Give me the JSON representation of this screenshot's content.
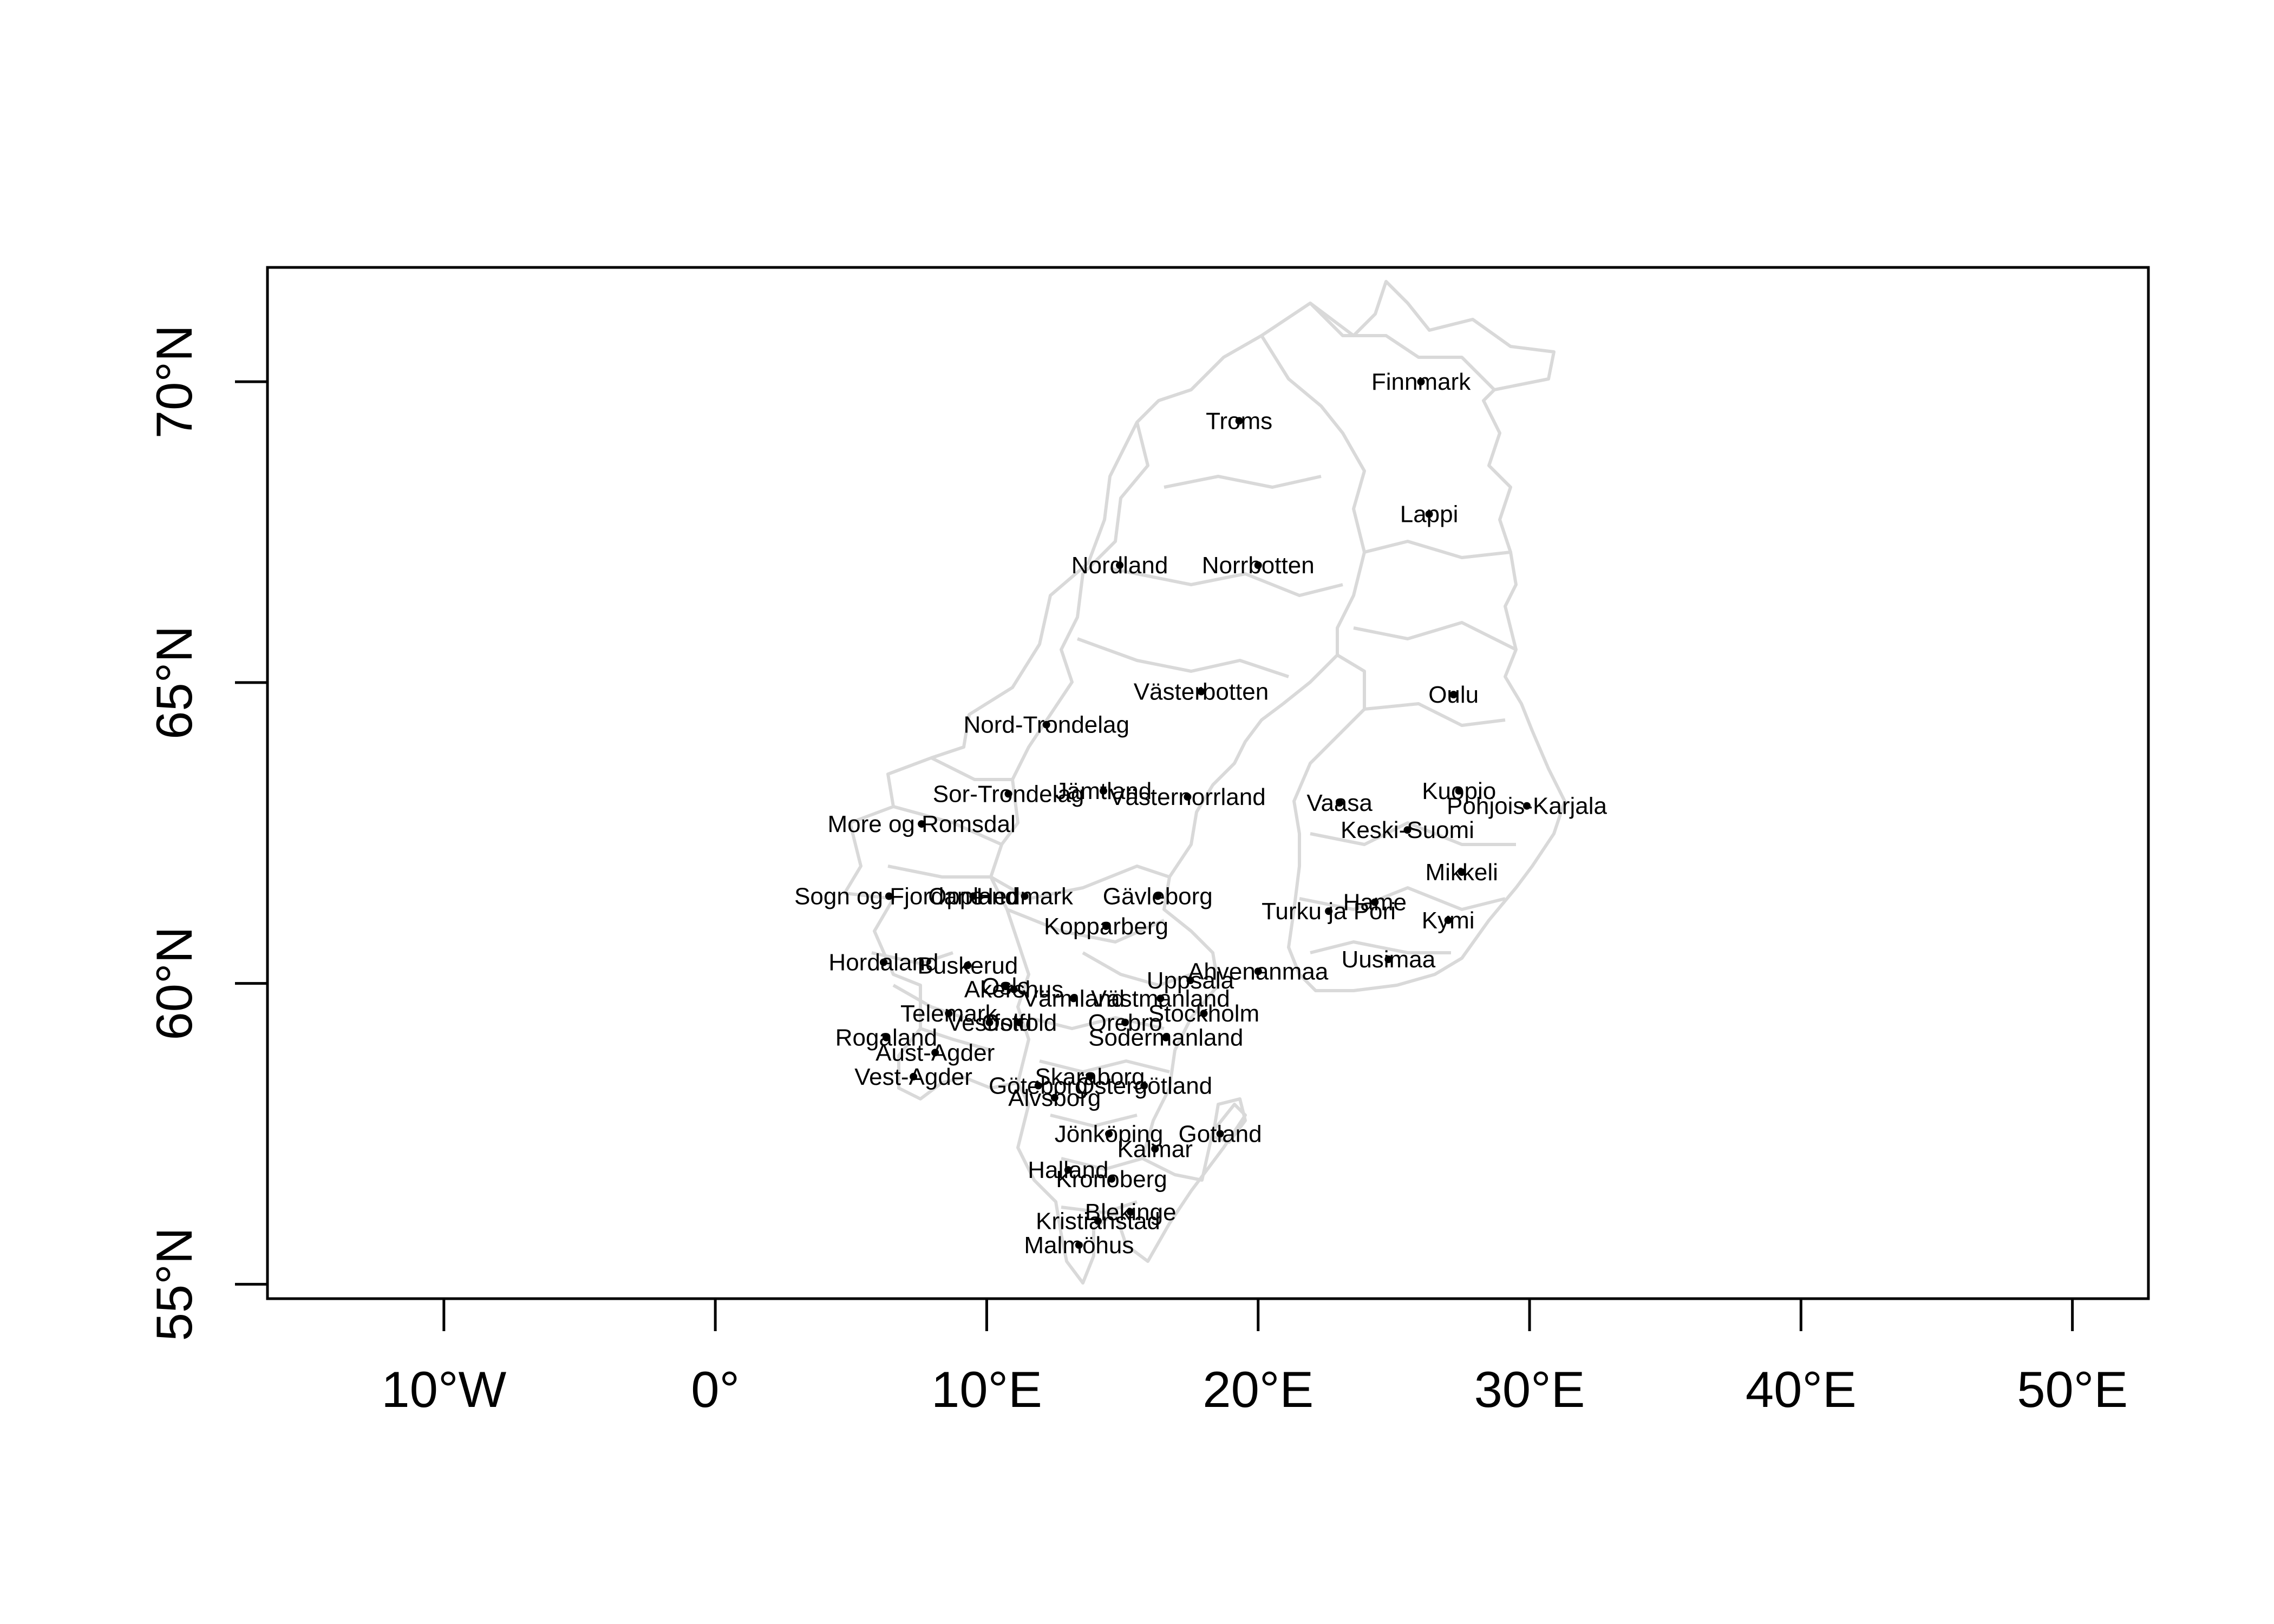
{
  "chart_data": {
    "type": "map",
    "x_axis": {
      "range": [
        -16.5,
        52.8
      ],
      "ticks": [
        -10,
        0,
        10,
        20,
        30,
        40,
        50
      ],
      "tick_labels": [
        "10°W",
        "0°",
        "10°E",
        "20°E",
        "30°E",
        "40°E",
        "50°E"
      ]
    },
    "y_axis": {
      "range": [
        54.76,
        71.9
      ],
      "ticks": [
        55,
        60,
        65,
        70
      ],
      "tick_labels": [
        "55°N",
        "60°N",
        "65°N",
        "70°N"
      ]
    },
    "outline_color": "#d9d9d9",
    "point_color": "#000000",
    "regions": [
      {
        "name": "Finnmark",
        "lon": 26.0,
        "lat": 70.0
      },
      {
        "name": "Troms",
        "lon": 19.3,
        "lat": 69.35
      },
      {
        "name": "Lappi",
        "lon": 26.3,
        "lat": 67.8
      },
      {
        "name": "Nordland",
        "lon": 14.9,
        "lat": 66.95
      },
      {
        "name": "Norrbotten",
        "lon": 20.0,
        "lat": 66.95
      },
      {
        "name": "Västerbotten",
        "lon": 17.9,
        "lat": 64.85
      },
      {
        "name": "Oulu",
        "lon": 27.2,
        "lat": 64.8
      },
      {
        "name": "Nord-Trondelag",
        "lon": 12.2,
        "lat": 64.3
      },
      {
        "name": "Jämtland",
        "lon": 14.3,
        "lat": 63.2
      },
      {
        "name": "Sor-Trondelag",
        "lon": 10.8,
        "lat": 63.15
      },
      {
        "name": "Västernorrland",
        "lon": 17.4,
        "lat": 63.1
      },
      {
        "name": "Kuopio",
        "lon": 27.4,
        "lat": 63.2
      },
      {
        "name": "Vaasa",
        "lon": 23.0,
        "lat": 63.0
      },
      {
        "name": "Pohjois-Karjala",
        "lon": 29.9,
        "lat": 62.95
      },
      {
        "name": "More og Romsdal",
        "lon": 7.6,
        "lat": 62.65
      },
      {
        "name": "Keski-Suomi",
        "lon": 25.5,
        "lat": 62.55
      },
      {
        "name": "Mikkeli",
        "lon": 27.5,
        "lat": 61.85
      },
      {
        "name": "Sogn og Fjordane",
        "lon": 6.4,
        "lat": 61.45
      },
      {
        "name": "Oppland",
        "lon": 9.5,
        "lat": 61.45
      },
      {
        "name": "Hedmark",
        "lon": 11.4,
        "lat": 61.45
      },
      {
        "name": "Gävleborg",
        "lon": 16.3,
        "lat": 61.45
      },
      {
        "name": "Turku ja Pori",
        "lon": 22.6,
        "lat": 61.2
      },
      {
        "name": "Hame",
        "lon": 24.3,
        "lat": 61.35
      },
      {
        "name": "Kymi",
        "lon": 27.0,
        "lat": 61.05
      },
      {
        "name": "Kopparberg",
        "lon": 14.4,
        "lat": 60.95
      },
      {
        "name": "Hordaland",
        "lon": 6.2,
        "lat": 60.35
      },
      {
        "name": "Buskerud",
        "lon": 9.3,
        "lat": 60.3
      },
      {
        "name": "Uusimaa",
        "lon": 24.8,
        "lat": 60.4
      },
      {
        "name": "Ahvenanmaa",
        "lon": 20.0,
        "lat": 60.2
      },
      {
        "name": "Uppsala",
        "lon": 17.5,
        "lat": 60.05
      },
      {
        "name": "Oslo",
        "lon": 10.7,
        "lat": 59.95
      },
      {
        "name": "Akershus",
        "lon": 11.0,
        "lat": 59.9
      },
      {
        "name": "Värmland",
        "lon": 13.2,
        "lat": 59.75
      },
      {
        "name": "Västmanland",
        "lon": 16.4,
        "lat": 59.75
      },
      {
        "name": "Telemark",
        "lon": 8.6,
        "lat": 59.5
      },
      {
        "name": "Vestfold",
        "lon": 10.1,
        "lat": 59.35
      },
      {
        "name": "Ostfold",
        "lon": 11.2,
        "lat": 59.35
      },
      {
        "name": "Orebro",
        "lon": 15.1,
        "lat": 59.35
      },
      {
        "name": "Stockholm",
        "lon": 18.0,
        "lat": 59.5
      },
      {
        "name": "Rogaland",
        "lon": 6.3,
        "lat": 59.1
      },
      {
        "name": "Sodermanland",
        "lon": 16.6,
        "lat": 59.1
      },
      {
        "name": "Aust-Agder",
        "lon": 8.1,
        "lat": 58.85
      },
      {
        "name": "Vest-Agder",
        "lon": 7.3,
        "lat": 58.45
      },
      {
        "name": "Skaraborg",
        "lon": 13.8,
        "lat": 58.45
      },
      {
        "name": "Göteborg",
        "lon": 11.9,
        "lat": 58.3
      },
      {
        "name": "Östergötland",
        "lon": 15.8,
        "lat": 58.3
      },
      {
        "name": "Alvsborg",
        "lon": 12.5,
        "lat": 58.1
      },
      {
        "name": "Jönköping",
        "lon": 14.5,
        "lat": 57.5
      },
      {
        "name": "Gotland",
        "lon": 18.6,
        "lat": 57.5
      },
      {
        "name": "Kalmar",
        "lon": 16.2,
        "lat": 57.25
      },
      {
        "name": "Halland",
        "lon": 13.0,
        "lat": 56.9
      },
      {
        "name": "Kronoberg",
        "lon": 14.6,
        "lat": 56.75
      },
      {
        "name": "Blekinge",
        "lon": 15.3,
        "lat": 56.2
      },
      {
        "name": "Kristianstad",
        "lon": 14.1,
        "lat": 56.05
      },
      {
        "name": "Malmöhus",
        "lon": 13.4,
        "lat": 55.65
      }
    ]
  }
}
